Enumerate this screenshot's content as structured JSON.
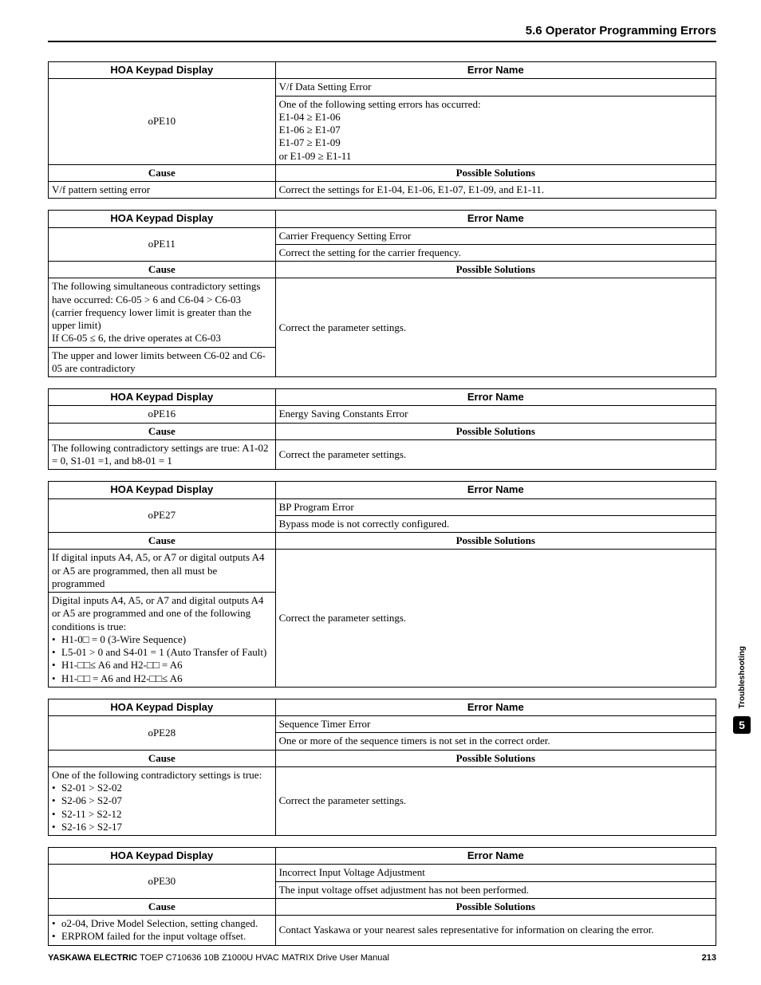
{
  "section_header": "5.6 Operator Programming Errors",
  "labels": {
    "hoa": "HOA Keypad Display",
    "err": "Error Name",
    "cause": "Cause",
    "sol": "Possible Solutions"
  },
  "t1": {
    "code": "oPE10",
    "name": "V/f Data Setting Error",
    "desc": "One of the following setting errors has occurred:\nE1-04 ≥ E1-06\nE1-06 ≥ E1-07\nE1-07 ≥ E1-09\nor E1-09 ≥ E1-11",
    "cause": "V/f pattern setting error",
    "sol": "Correct the settings for E1-04, E1-06, E1-07, E1-09, and E1-11."
  },
  "t2": {
    "code": "oPE11",
    "name": "Carrier Frequency Setting Error",
    "desc": "Correct the setting for the carrier frequency.",
    "cause1": "The following simultaneous contradictory settings have occurred: C6-05 > 6 and C6-04 > C6-03 (carrier frequency lower limit is greater than the upper limit)\nIf C6-05 ≤ 6, the drive operates at C6-03",
    "cause2": "The upper and lower limits between C6-02 and C6-05 are contradictory",
    "sol": "Correct the parameter settings."
  },
  "t3": {
    "code": "oPE16",
    "name": "Energy Saving Constants Error",
    "cause": "The following contradictory settings are true: A1-02 = 0, S1-01 =1, and b8-01 = 1",
    "sol": "Correct the parameter settings."
  },
  "t4": {
    "code": "oPE27",
    "name": "BP Program Error",
    "desc": "Bypass mode is not correctly configured.",
    "cause1": "If digital inputs A4, A5, or A7 or digital outputs A4 or A5 are programmed, then all must be programmed",
    "cause2_intro": "Digital inputs A4, A5, or A7 and digital outputs A4 or A5 are programmed and one of the following conditions is true:",
    "cause2_b1": "H1-0□ = 0 (3-Wire Sequence)",
    "cause2_b2": "L5-01 > 0 and S4-01 = 1 (Auto Transfer of Fault)",
    "cause2_b3": "H1-□□≤ A6 and H2-□□ = A6",
    "cause2_b4": "H1-□□ = A6 and H2-□□≤ A6",
    "sol": "Correct the parameter settings."
  },
  "t5": {
    "code": "oPE28",
    "name": "Sequence Timer Error",
    "desc": "One or more of the sequence timers is not set in the correct order.",
    "cause_intro": "One of the following contradictory settings is true:",
    "b1": "S2-01 > S2-02",
    "b2": "S2-06 > S2-07",
    "b3": "S2-11 > S2-12",
    "b4": "S2-16 > S2-17",
    "sol": "Correct the parameter settings."
  },
  "t6": {
    "code": "oPE30",
    "name": "Incorrect Input Voltage Adjustment",
    "desc": "The input voltage offset adjustment has not been performed.",
    "cause_b1": "o2-04, Drive Model Selection, setting changed.",
    "cause_b2": "ERPROM failed for the input voltage offset.",
    "sol": "Contact Yaskawa or your nearest sales representative for information on clearing the error."
  },
  "sidebar": {
    "label": "Troubleshooting",
    "num": "5"
  },
  "footer": {
    "brand": "YASKAWA ELECTRIC",
    "doc": " TOEP C710636 10B Z1000U HVAC MATRIX Drive User Manual",
    "page": "213"
  }
}
